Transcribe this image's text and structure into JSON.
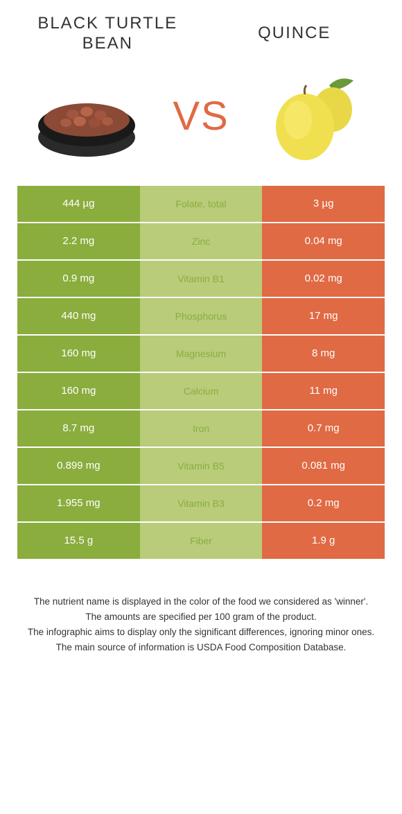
{
  "colors": {
    "green_dark": "#8aad3e",
    "green_light": "#b9cc7a",
    "orange": "#e06a44",
    "vs_text": "#e06a44"
  },
  "food_left": {
    "title": "BLACK TURTLE BEAN"
  },
  "food_right": {
    "title": "QUINCE"
  },
  "vs": "VS",
  "rows": [
    {
      "left": "444 µg",
      "label": "Folate, total",
      "right": "3 µg",
      "winner": "left"
    },
    {
      "left": "2.2 mg",
      "label": "Zinc",
      "right": "0.04 mg",
      "winner": "left"
    },
    {
      "left": "0.9 mg",
      "label": "Vitamin B1",
      "right": "0.02 mg",
      "winner": "left"
    },
    {
      "left": "440 mg",
      "label": "Phosphorus",
      "right": "17 mg",
      "winner": "left"
    },
    {
      "left": "160 mg",
      "label": "Magnesium",
      "right": "8 mg",
      "winner": "left"
    },
    {
      "left": "160 mg",
      "label": "Calcium",
      "right": "11 mg",
      "winner": "left"
    },
    {
      "left": "8.7 mg",
      "label": "Iron",
      "right": "0.7 mg",
      "winner": "left"
    },
    {
      "left": "0.899 mg",
      "label": "Vitamin B5",
      "right": "0.081 mg",
      "winner": "left"
    },
    {
      "left": "1.955 mg",
      "label": "Vitamin B3",
      "right": "0.2 mg",
      "winner": "left"
    },
    {
      "left": "15.5 g",
      "label": "Fiber",
      "right": "1.9 g",
      "winner": "left"
    }
  ],
  "footnotes": [
    "The nutrient name is displayed in the color of the food we considered as 'winner'.",
    "The amounts are specified per 100 gram of the product.",
    "The infographic aims to display only the significant differences, ignoring minor ones.",
    "The main source of information is USDA Food Composition Database."
  ]
}
